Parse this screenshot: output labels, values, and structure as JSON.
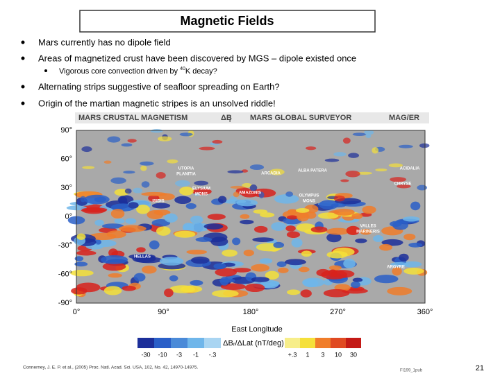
{
  "title": "Magnetic Fields",
  "bullets": [
    {
      "text": "Mars currently has no dipole field"
    },
    {
      "text": "Areas of magnetized crust have been discovered by MGS – dipole existed once",
      "sub": [
        "Vigorous core convection driven by ",
        "40",
        "K decay?"
      ]
    },
    {
      "text": "Alternating strips suggestive of seafloor spreading on Earth?"
    },
    {
      "text": "Origin of the martian magnetic stripes is an unsolved riddle!"
    }
  ],
  "figure": {
    "header": [
      "MARS CRUSTAL MAGNETISM",
      "ΔB",
      "r",
      "MARS GLOBAL SURVEYOR",
      "MAG/ER"
    ],
    "y_labels": [
      "90°",
      "60°",
      "30°",
      "0°",
      "-30°",
      "-60°",
      "-90°"
    ],
    "x_labels": [
      "0°",
      "90°",
      "180°",
      "270°",
      "360°"
    ],
    "regions": [
      "UTOPIA",
      "PLANITIA",
      "ARCADIA",
      "ALBA PATERA",
      "ACIDALIA",
      "ELYSIUM",
      "MONS",
      "AMAZONIS",
      "OLYMPUS",
      "MONS",
      "CHRYSE",
      "ISIDIS",
      "HELLAS",
      "ARGYRE",
      "VALLES",
      "MARINERIS"
    ],
    "x_title": "East Longitude",
    "colorbar_title": "ΔBᵣ/ΔLat (nT/deg)",
    "neg_labels": [
      "-30",
      "-10",
      "-3",
      "-1",
      "-.3"
    ],
    "pos_labels": [
      "+.3",
      "1",
      "3",
      "10",
      "30"
    ],
    "fig_id": "FI199_1pub"
  },
  "citation": "Connerney, J. E. P. et al., (2005) Proc. Natl. Acad. Sci. USA, 102, No. 42, 14970-14975.",
  "page_number": "21"
}
